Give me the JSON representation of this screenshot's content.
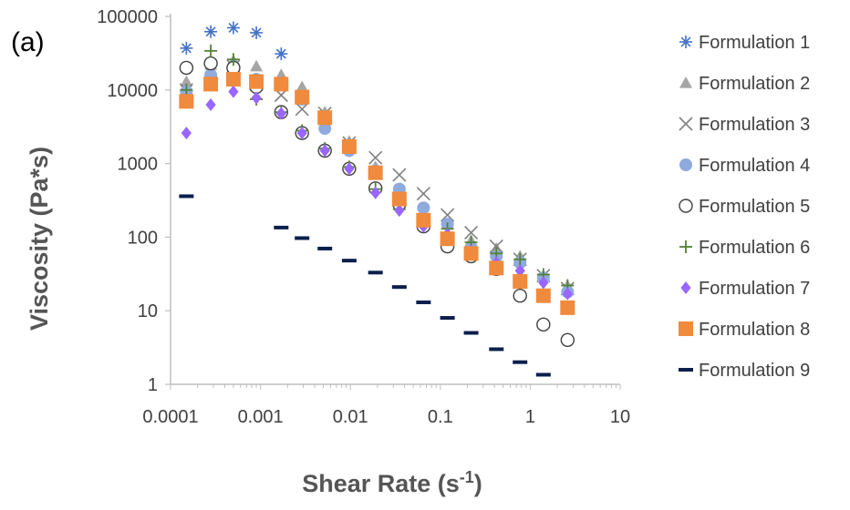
{
  "panel_label": "(a)",
  "chart_data": {
    "type": "scatter",
    "xlabel": "Shear Rate (s-1)",
    "xlabel_main": "Shear Rate (s",
    "xlabel_sup": "-1",
    "xlabel_end": ")",
    "ylabel": "Viscosity (Pa*s)",
    "xscale": "log",
    "yscale": "log",
    "xlim": [
      0.0001,
      10
    ],
    "ylim": [
      1,
      100000
    ],
    "xticks": [
      "0.0001",
      "0.001",
      "0.01",
      "0.1",
      "1",
      "10"
    ],
    "yticks": [
      "1",
      "10",
      "100",
      "1000",
      "10000",
      "100000"
    ],
    "legend_position": "right",
    "grid": false,
    "series": [
      {
        "name": "Formulation 1",
        "marker": "asterisk",
        "color": "#4472C4",
        "x": [
          0.00015,
          0.00028,
          0.0005,
          0.0009,
          0.0017
        ],
        "y": [
          37000,
          62000,
          70000,
          60000,
          31000
        ]
      },
      {
        "name": "Formulation 2",
        "marker": "triangle",
        "color": "#A5A5A5",
        "x": [
          0.00015,
          0.00028,
          0.0005,
          0.0009,
          0.0017,
          0.0029,
          0.0052,
          0.0097,
          0.019,
          0.035,
          0.065,
          0.12,
          0.22,
          0.42,
          0.77,
          1.4,
          2.6
        ],
        "y": [
          13000,
          22000,
          25000,
          21000,
          16000,
          11000,
          5000,
          2000,
          900,
          430,
          210,
          150,
          90,
          70,
          55,
          30,
          22
        ]
      },
      {
        "name": "Formulation 3",
        "marker": "x",
        "color": "#808080",
        "x": [
          0.00015,
          0.00028,
          0.0005,
          0.0009,
          0.0017,
          0.0029,
          0.0052,
          0.0097,
          0.019,
          0.035,
          0.065,
          0.12,
          0.22,
          0.42,
          0.77,
          1.4,
          2.6
        ],
        "y": [
          10000,
          18000,
          21000,
          12000,
          8500,
          5500,
          4800,
          1900,
          1200,
          700,
          390,
          200,
          115,
          75,
          50,
          30,
          20
        ]
      },
      {
        "name": "Formulation 4",
        "marker": "circle",
        "color": "#8FAADC",
        "x": [
          0.00015,
          0.00028,
          0.0005,
          0.0009,
          0.0017,
          0.0029,
          0.0052,
          0.0097,
          0.019,
          0.035,
          0.065,
          0.12,
          0.22,
          0.42,
          0.77,
          1.4,
          2.6
        ],
        "y": [
          9500,
          16000,
          21000,
          14000,
          12000,
          7500,
          3000,
          1500,
          800,
          450,
          250,
          150,
          70,
          55,
          45,
          28,
          18
        ]
      },
      {
        "name": "Formulation 5",
        "marker": "open-circle",
        "color": "#404040",
        "x": [
          0.00015,
          0.00028,
          0.0005,
          0.0009,
          0.0017,
          0.0029,
          0.0052,
          0.0097,
          0.019,
          0.035,
          0.065,
          0.12,
          0.22,
          0.42,
          0.77,
          1.4,
          2.6
        ],
        "y": [
          20000,
          23000,
          20000,
          11000,
          5000,
          2600,
          1500,
          850,
          460,
          280,
          140,
          75,
          55,
          37,
          16,
          6.5,
          4
        ]
      },
      {
        "name": "Formulation 6",
        "marker": "plus",
        "color": "#548235",
        "x": [
          0.00015,
          0.00028,
          0.0005,
          0.0009,
          0.0017,
          0.0029,
          0.0052,
          0.0097,
          0.019,
          0.035,
          0.065,
          0.12,
          0.22,
          0.42,
          0.77,
          1.4,
          2.6
        ],
        "y": [
          10000,
          34000,
          26000,
          7500,
          5000,
          2800,
          1600,
          900,
          450,
          240,
          160,
          130,
          85,
          60,
          50,
          31,
          22
        ]
      },
      {
        "name": "Formulation 7",
        "marker": "diamond",
        "color": "#9966FF",
        "x": [
          0.00015,
          0.00028,
          0.0005,
          0.0009,
          0.0017,
          0.0029,
          0.0052,
          0.0097,
          0.019,
          0.035,
          0.065,
          0.12,
          0.22,
          0.42,
          0.77,
          1.4,
          2.6
        ],
        "y": [
          2600,
          6300,
          9500,
          7800,
          4800,
          2600,
          1500,
          850,
          400,
          230,
          140,
          110,
          65,
          45,
          35,
          24,
          17
        ]
      },
      {
        "name": "Formulation 8",
        "marker": "square",
        "color": "#F08A3C",
        "x": [
          0.00015,
          0.00028,
          0.0005,
          0.0009,
          0.0017,
          0.0029,
          0.0052,
          0.0097,
          0.019,
          0.035,
          0.065,
          0.12,
          0.22,
          0.42,
          0.77,
          1.4,
          2.6
        ],
        "y": [
          7000,
          12000,
          14000,
          13000,
          12000,
          8000,
          4200,
          1700,
          750,
          330,
          170,
          95,
          60,
          38,
          25,
          16,
          11
        ]
      },
      {
        "name": "Formulation 9",
        "marker": "dash",
        "color": "#0B1F4B",
        "x": [
          0.00015,
          0.0017,
          0.0029,
          0.0052,
          0.0097,
          0.019,
          0.035,
          0.065,
          0.12,
          0.22,
          0.42,
          0.77,
          1.4
        ],
        "y": [
          360,
          135,
          97,
          70,
          48,
          33,
          21,
          13,
          8,
          5,
          3,
          2,
          1.35
        ]
      }
    ]
  }
}
